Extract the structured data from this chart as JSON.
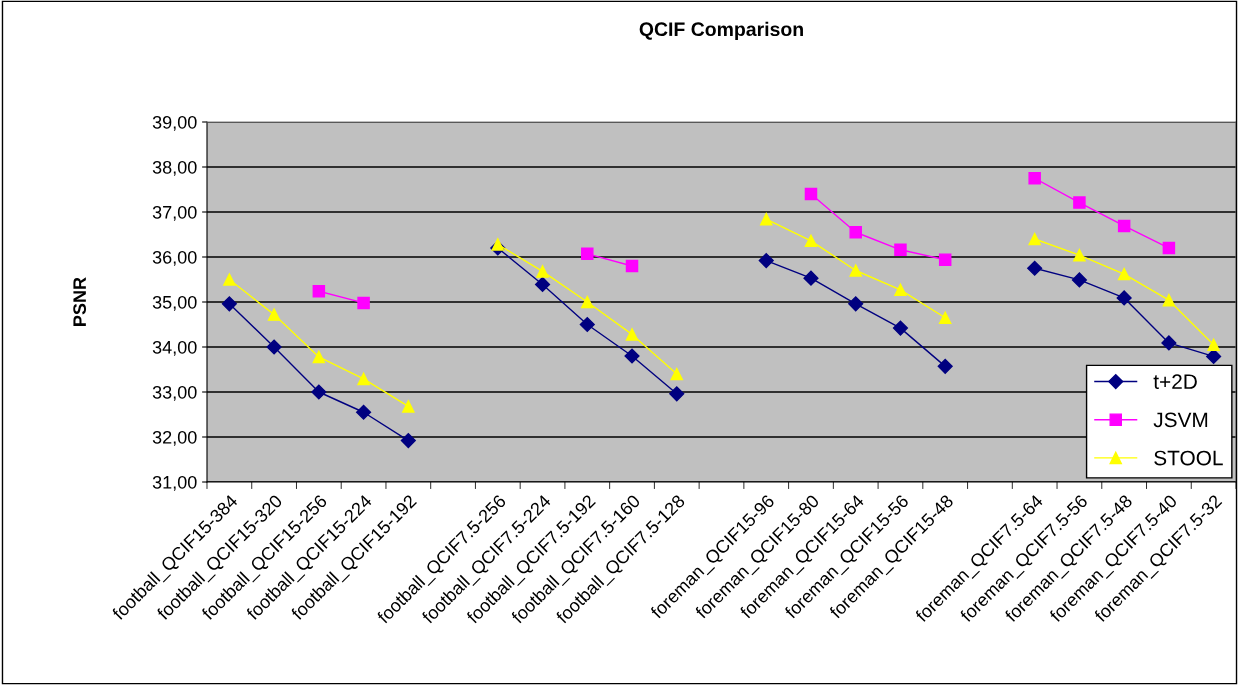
{
  "chart_data": {
    "type": "line",
    "title": "QCIF Comparison",
    "ylabel": "PSNR",
    "categories": [
      "football_QCIF15-384",
      "football_QCIF15-320",
      "football_QCIF15-256",
      "football_QCIF15-224",
      "football_QCIF15-192",
      null,
      "football_QCIF7.5-256",
      "football_QCIF7.5-224",
      "football_QCIF7.5-192",
      "football_QCIF7.5-160",
      "football_QCIF7.5-128",
      null,
      "foreman_QCIF15-96",
      "foreman_QCIF15-80",
      "foreman_QCIF15-64",
      "foreman_QCIF15-56",
      "foreman_QCIF15-48",
      null,
      "foreman_QCIF7.5-64",
      "foreman_QCIF7.5-56",
      "foreman_QCIF7.5-48",
      "foreman_QCIF7.5-40",
      "foreman_QCIF7.5-32"
    ],
    "series": [
      {
        "name": "t+2D",
        "color": "#000080",
        "marker": "diamond",
        "values": [
          34.96,
          34.0,
          33.0,
          32.55,
          31.92,
          null,
          36.2,
          35.39,
          34.5,
          33.8,
          32.96,
          null,
          35.92,
          35.53,
          34.96,
          34.42,
          33.57,
          null,
          35.75,
          35.49,
          35.09,
          34.09,
          33.79
        ]
      },
      {
        "name": "JSVM",
        "color": "#ff00ff",
        "marker": "square",
        "values": [
          null,
          null,
          35.24,
          34.98,
          null,
          null,
          null,
          null,
          36.07,
          35.8,
          null,
          null,
          null,
          37.4,
          36.55,
          36.16,
          35.94,
          null,
          37.75,
          37.21,
          36.69,
          36.2,
          null
        ]
      },
      {
        "name": "STOOL",
        "color": "#ffff00",
        "marker": "triangle",
        "values": [
          35.5,
          34.72,
          33.78,
          33.29,
          32.68,
          null,
          36.28,
          35.68,
          35.0,
          34.28,
          33.4,
          null,
          36.84,
          36.36,
          35.7,
          35.27,
          34.65,
          null,
          36.4,
          36.04,
          35.62,
          35.04,
          34.05
        ]
      }
    ],
    "ylim": [
      31,
      39
    ],
    "yticks": [
      {
        "value": 31,
        "label": "31,00"
      },
      {
        "value": 32,
        "label": "32,00"
      },
      {
        "value": 33,
        "label": "33,00"
      },
      {
        "value": 34,
        "label": "34,00"
      },
      {
        "value": 35,
        "label": "35,00"
      },
      {
        "value": 36,
        "label": "36,00"
      },
      {
        "value": 37,
        "label": "37,00"
      },
      {
        "value": 38,
        "label": "38,00"
      },
      {
        "value": 39,
        "label": "39,00"
      }
    ],
    "grid": "y",
    "legend": "bottom right",
    "line_style": "solid"
  }
}
